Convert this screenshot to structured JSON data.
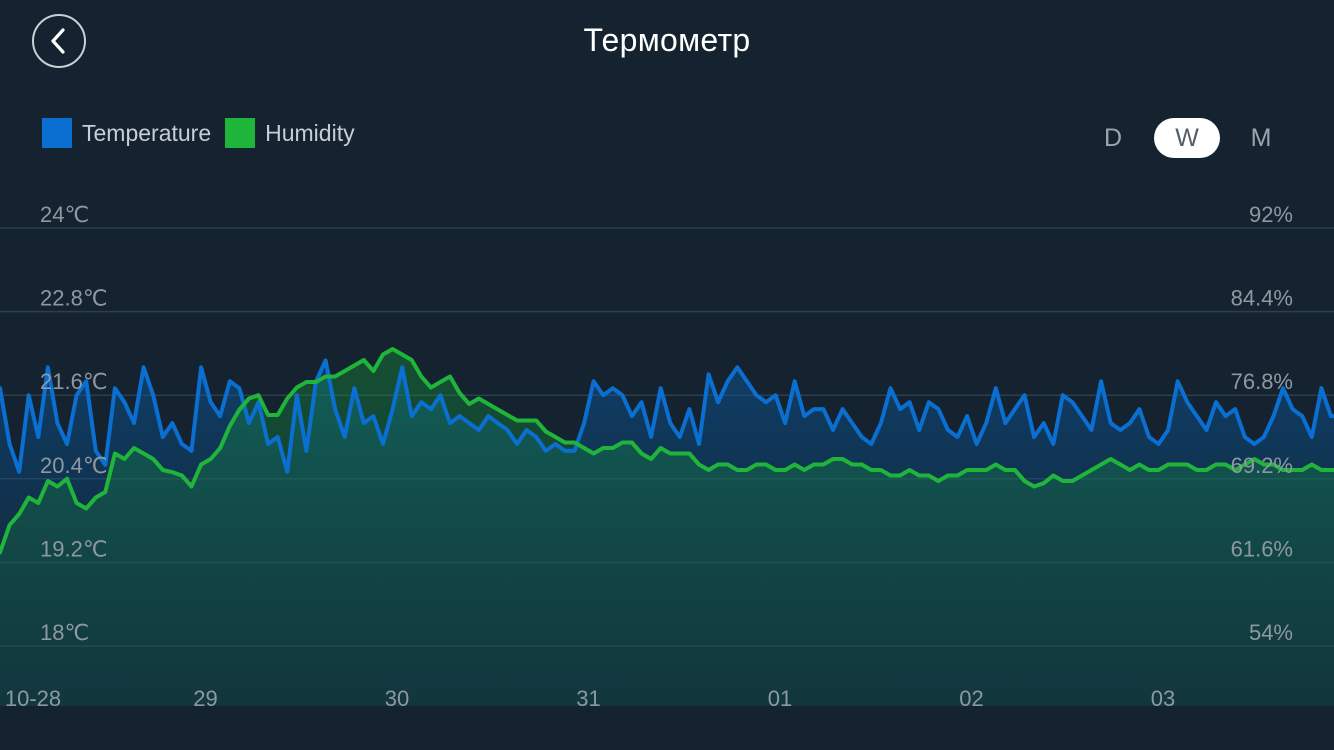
{
  "header": {
    "title": "Термометр",
    "back_icon": "chevron-left-icon"
  },
  "legend": [
    {
      "label": "Temperature",
      "color": "#0a6fd1"
    },
    {
      "label": "Humidity",
      "color": "#1fb53b"
    }
  ],
  "range_tabs": [
    {
      "label": "D",
      "active": false
    },
    {
      "label": "W",
      "active": true
    },
    {
      "label": "M",
      "active": false
    }
  ],
  "chart_data": {
    "type": "line",
    "x_ticks": [
      "10-28",
      "29",
      "30",
      "31",
      "01",
      "02",
      "03"
    ],
    "xlim": [
      "2016-10-28",
      "2016-11-04"
    ],
    "y_left": {
      "ticks": [
        "24℃",
        "22.8℃",
        "21.6℃",
        "20.4℃",
        "19.2℃",
        "18℃"
      ],
      "ylim": [
        18,
        24
      ]
    },
    "y_right": {
      "ticks": [
        "92%",
        "84.4%",
        "76.8%",
        "69.2%",
        "61.6%",
        "54%"
      ],
      "ylim": [
        54,
        92
      ]
    },
    "grid": true,
    "series": [
      {
        "name": "Temperature",
        "axis": "left",
        "color": "#0a6fd1",
        "x": [
          0,
          0.05,
          0.1,
          0.15,
          0.2,
          0.25,
          0.3,
          0.35,
          0.4,
          0.45,
          0.5,
          0.55,
          0.6,
          0.65,
          0.7,
          0.75,
          0.8,
          0.85,
          0.9,
          0.95,
          1,
          1.05,
          1.1,
          1.15,
          1.2,
          1.25,
          1.3,
          1.35,
          1.4,
          1.45,
          1.5,
          1.55,
          1.6,
          1.65,
          1.7,
          1.75,
          1.8,
          1.85,
          1.9,
          1.95,
          2,
          2.05,
          2.1,
          2.15,
          2.2,
          2.25,
          2.3,
          2.35,
          2.4,
          2.45,
          2.5,
          2.55,
          2.6,
          2.65,
          2.7,
          2.75,
          2.8,
          2.85,
          2.9,
          2.95,
          3,
          3.05,
          3.1,
          3.15,
          3.2,
          3.25,
          3.3,
          3.35,
          3.4,
          3.45,
          3.5,
          3.55,
          3.6,
          3.65,
          3.7,
          3.75,
          3.8,
          3.85,
          3.9,
          3.95,
          4,
          4.05,
          4.1,
          4.15,
          4.2,
          4.25,
          4.3,
          4.35,
          4.4,
          4.45,
          4.5,
          4.55,
          4.6,
          4.65,
          4.7,
          4.75,
          4.8,
          4.85,
          4.9,
          4.95,
          5,
          5.05,
          5.1,
          5.15,
          5.2,
          5.25,
          5.3,
          5.35,
          5.4,
          5.45,
          5.5,
          5.55,
          5.6,
          5.65,
          5.7,
          5.75,
          5.8,
          5.85,
          5.9,
          5.95,
          6,
          6.05,
          6.1,
          6.15,
          6.2,
          6.25,
          6.3,
          6.35,
          6.4,
          6.45,
          6.5,
          6.55,
          6.6,
          6.65,
          6.7,
          6.75,
          6.8,
          6.85,
          6.9,
          6.95
        ],
        "values": [
          21.7,
          20.9,
          20.5,
          21.6,
          21.0,
          22.0,
          21.2,
          20.9,
          21.6,
          21.8,
          20.8,
          20.6,
          21.7,
          21.5,
          21.2,
          22.0,
          21.6,
          21.0,
          21.2,
          20.9,
          20.8,
          22.0,
          21.5,
          21.3,
          21.8,
          21.7,
          21.2,
          21.5,
          20.9,
          21.0,
          20.5,
          21.6,
          20.8,
          21.8,
          22.1,
          21.4,
          21.0,
          21.7,
          21.2,
          21.3,
          20.9,
          21.4,
          22.0,
          21.3,
          21.5,
          21.4,
          21.6,
          21.2,
          21.3,
          21.2,
          21.1,
          21.3,
          21.2,
          21.1,
          20.9,
          21.1,
          21.0,
          20.8,
          20.9,
          20.8,
          20.8,
          21.2,
          21.8,
          21.6,
          21.7,
          21.6,
          21.3,
          21.5,
          21.0,
          21.7,
          21.2,
          21.0,
          21.4,
          20.9,
          21.9,
          21.5,
          21.8,
          22.0,
          21.8,
          21.6,
          21.5,
          21.6,
          21.2,
          21.8,
          21.3,
          21.4,
          21.4,
          21.1,
          21.4,
          21.2,
          21.0,
          20.9,
          21.2,
          21.7,
          21.4,
          21.5,
          21.1,
          21.5,
          21.4,
          21.1,
          21.0,
          21.3,
          20.9,
          21.2,
          21.7,
          21.2,
          21.4,
          21.6,
          21.0,
          21.2,
          20.9,
          21.6,
          21.5,
          21.3,
          21.1,
          21.8,
          21.2,
          21.1,
          21.2,
          21.4,
          21.0,
          20.9,
          21.1,
          21.8,
          21.5,
          21.3,
          21.1,
          21.5,
          21.3,
          21.4,
          21.0,
          20.9,
          21.0,
          21.3,
          21.7,
          21.4,
          21.3,
          21.0,
          21.7,
          21.3
        ],
        "fill": true
      },
      {
        "name": "Humidity",
        "axis": "right",
        "color": "#1fb53b",
        "x": [
          0,
          0.05,
          0.1,
          0.15,
          0.2,
          0.25,
          0.3,
          0.35,
          0.4,
          0.45,
          0.5,
          0.55,
          0.6,
          0.65,
          0.7,
          0.75,
          0.8,
          0.85,
          0.9,
          0.95,
          1,
          1.05,
          1.1,
          1.15,
          1.2,
          1.25,
          1.3,
          1.35,
          1.4,
          1.45,
          1.5,
          1.55,
          1.6,
          1.65,
          1.7,
          1.75,
          1.8,
          1.85,
          1.9,
          1.95,
          2,
          2.05,
          2.1,
          2.15,
          2.2,
          2.25,
          2.3,
          2.35,
          2.4,
          2.45,
          2.5,
          2.55,
          2.6,
          2.65,
          2.7,
          2.75,
          2.8,
          2.85,
          2.9,
          2.95,
          3,
          3.05,
          3.1,
          3.15,
          3.2,
          3.25,
          3.3,
          3.35,
          3.4,
          3.45,
          3.5,
          3.55,
          3.6,
          3.65,
          3.7,
          3.75,
          3.8,
          3.85,
          3.9,
          3.95,
          4,
          4.05,
          4.1,
          4.15,
          4.2,
          4.25,
          4.3,
          4.35,
          4.4,
          4.45,
          4.5,
          4.55,
          4.6,
          4.65,
          4.7,
          4.75,
          4.8,
          4.85,
          4.9,
          4.95,
          5,
          5.05,
          5.1,
          5.15,
          5.2,
          5.25,
          5.3,
          5.35,
          5.4,
          5.45,
          5.5,
          5.55,
          5.6,
          5.65,
          5.7,
          5.75,
          5.8,
          5.85,
          5.9,
          5.95,
          6,
          6.05,
          6.1,
          6.15,
          6.2,
          6.25,
          6.3,
          6.35,
          6.4,
          6.45,
          6.5,
          6.55,
          6.6,
          6.65,
          6.7,
          6.75,
          6.8,
          6.85,
          6.9,
          6.95
        ],
        "values": [
          62.5,
          65.0,
          66.0,
          67.5,
          67.0,
          69.0,
          68.5,
          69.2,
          67.0,
          66.5,
          67.5,
          68.0,
          71.5,
          71.0,
          72.0,
          71.5,
          71.0,
          70.0,
          69.8,
          69.5,
          68.5,
          70.5,
          71.0,
          72.0,
          74.0,
          75.5,
          76.5,
          76.8,
          75.0,
          75.0,
          76.5,
          77.5,
          78.0,
          78.0,
          78.5,
          78.5,
          79.0,
          79.5,
          80.0,
          79.0,
          80.5,
          81.0,
          80.5,
          80.0,
          78.5,
          77.5,
          78.0,
          78.5,
          77.0,
          76.0,
          76.5,
          76.0,
          75.5,
          75.0,
          74.5,
          74.5,
          74.5,
          73.5,
          73.0,
          72.5,
          72.5,
          72.0,
          71.5,
          72.0,
          72.0,
          72.5,
          72.5,
          71.5,
          71.0,
          72.0,
          71.5,
          71.5,
          71.5,
          70.5,
          70.0,
          70.5,
          70.5,
          70.0,
          70.0,
          70.5,
          70.5,
          70.0,
          70.0,
          70.5,
          70.0,
          70.5,
          70.5,
          71.0,
          71.0,
          70.5,
          70.5,
          70.0,
          70.0,
          69.5,
          69.5,
          70.0,
          69.5,
          69.5,
          69.0,
          69.5,
          69.5,
          70.0,
          70.0,
          70.0,
          70.5,
          70.0,
          70.0,
          69.0,
          68.5,
          68.8,
          69.5,
          69.0,
          69.0,
          69.5,
          70.0,
          70.5,
          71.0,
          70.5,
          70.0,
          70.5,
          70.0,
          70.0,
          70.5,
          70.5,
          70.5,
          70.0,
          70.0,
          70.5,
          70.5,
          70.0,
          70.5,
          71.0,
          70.5,
          70.5,
          70.0,
          70.0,
          70.0,
          70.5,
          70.0,
          70.0
        ],
        "fill": true
      }
    ]
  }
}
